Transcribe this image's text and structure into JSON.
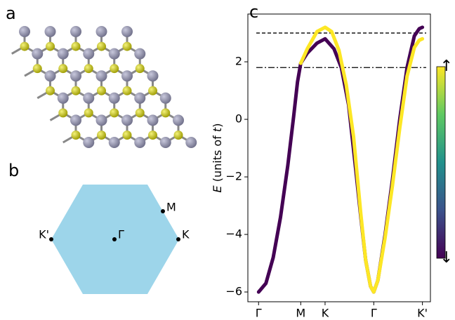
{
  "panels": [
    "a",
    "b",
    "c"
  ],
  "brillouin_zone": {
    "labels": [
      "K'",
      "Γ",
      "K",
      "M"
    ]
  },
  "chart_data": {
    "type": "line",
    "ylabel": [
      "E",
      " (units of ",
      "t",
      ")"
    ],
    "xlim": [
      -0.22,
      3.53
    ],
    "ylim": [
      -6.34,
      3.66
    ],
    "xticks": [
      {
        "value": 0,
        "label": "Γ"
      },
      {
        "value": 0.866,
        "label": "M"
      },
      {
        "value": 1.366,
        "label": "K"
      },
      {
        "value": 2.366,
        "label": "Γ"
      },
      {
        "value": 3.366,
        "label": "K'"
      }
    ],
    "yticks": [
      2,
      0,
      {
        "value": -2,
        "label": "−2"
      },
      {
        "value": -4,
        "label": "−4"
      },
      {
        "value": -6,
        "label": "−6"
      }
    ],
    "hlines": [
      {
        "value": 3.0,
        "style": "dashed"
      },
      {
        "value": 1.8,
        "style": "dashdot"
      }
    ],
    "series": [
      {
        "color": "#440154",
        "x": [
          0,
          0.15,
          0.3,
          0.45,
          0.6,
          0.72,
          0.8,
          0.866,
          1.0,
          1.2,
          1.366,
          1.55,
          1.7,
          1.85,
          2.0,
          2.1,
          2.2,
          2.3,
          2.366,
          2.45,
          2.6,
          2.75,
          2.9,
          3.05,
          3.2,
          3.3,
          3.366
        ],
        "values": [
          -6,
          -5.7,
          -4.8,
          -3.4,
          -1.6,
          0.1,
          1.3,
          1.95,
          2.3,
          2.65,
          2.8,
          2.45,
          1.8,
          0.5,
          -1.8,
          -3.4,
          -4.9,
          -5.8,
          -6,
          -5.6,
          -4.0,
          -2.1,
          0,
          1.8,
          2.9,
          3.15,
          3.2
        ]
      },
      {
        "color": "#fde725",
        "x": [
          0.866,
          1.0,
          1.2,
          1.366,
          1.5,
          1.65,
          1.8,
          1.95,
          2.1,
          2.2,
          2.3,
          2.366,
          2.45,
          2.6,
          2.75,
          2.9,
          3.05,
          3.2,
          3.3,
          3.366
        ],
        "values": [
          1.95,
          2.45,
          3.05,
          3.2,
          3.05,
          2.4,
          1.2,
          -0.6,
          -3.3,
          -4.9,
          -5.8,
          -6,
          -5.6,
          -4.1,
          -2.3,
          -0.3,
          1.5,
          2.5,
          2.75,
          2.8
        ]
      }
    ],
    "colorbar": {
      "colormap": "viridis",
      "top_label": "↑",
      "bottom_label": "↓"
    }
  }
}
